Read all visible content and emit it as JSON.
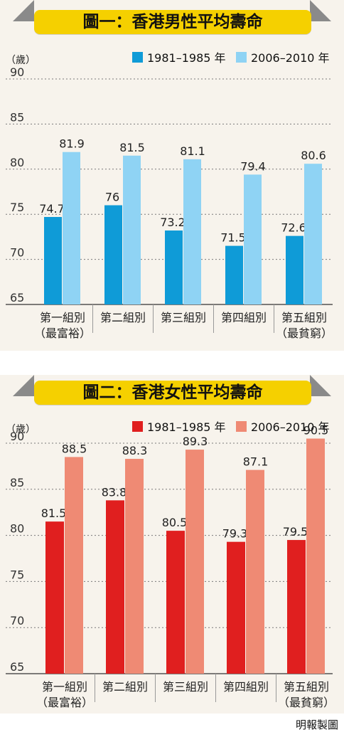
{
  "credit": "明報製圖",
  "charts": [
    {
      "title": "圖一：香港男性平均壽命",
      "unit": "（歲）",
      "legend": [
        "1981–1985 年",
        "2006–2010 年"
      ],
      "colors": [
        "#0f9bd7",
        "#8fd3f4"
      ]
    },
    {
      "title": "圖二：香港女性平均壽命",
      "unit": "（歲）",
      "legend": [
        "1981–1985 年",
        "2006–2010 年"
      ],
      "colors": [
        "#e01f1f",
        "#ef8a74"
      ]
    }
  ],
  "chart_data": [
    {
      "type": "bar",
      "title": "圖一：香港男性平均壽命",
      "ylabel": "（歲）",
      "ylim": [
        65,
        90
      ],
      "yticks": [
        65,
        70,
        75,
        80,
        85,
        90
      ],
      "categories": [
        [
          "第一組別",
          "（最富裕）"
        ],
        [
          "第二組別"
        ],
        [
          "第三組別"
        ],
        [
          "第四組別"
        ],
        [
          "第五組別",
          "（最貧窮）"
        ]
      ],
      "series": [
        {
          "name": "1981–1985 年",
          "color": "#0f9bd7",
          "values": [
            74.7,
            76,
            73.2,
            71.5,
            72.6
          ],
          "labels": [
            "74.7",
            "76",
            "73.2",
            "71.5",
            "72.6"
          ]
        },
        {
          "name": "2006–2010 年",
          "color": "#8fd3f4",
          "values": [
            81.9,
            81.5,
            81.1,
            79.4,
            80.6
          ],
          "labels": [
            "81.9",
            "81.5",
            "81.1",
            "79.4",
            "80.6"
          ]
        }
      ]
    },
    {
      "type": "bar",
      "title": "圖二：香港女性平均壽命",
      "ylabel": "（歲）",
      "ylim": [
        65,
        90
      ],
      "yticks": [
        65,
        70,
        75,
        80,
        85,
        90
      ],
      "categories": [
        [
          "第一組別",
          "（最富裕）"
        ],
        [
          "第二組別"
        ],
        [
          "第三組別"
        ],
        [
          "第四組別"
        ],
        [
          "第五組別",
          "（最貧窮）"
        ]
      ],
      "series": [
        {
          "name": "1981–1985 年",
          "color": "#e01f1f",
          "values": [
            81.5,
            83.8,
            80.5,
            79.3,
            79.5
          ],
          "labels": [
            "81.5",
            "83.8",
            "80.5",
            "79.3",
            "79.5"
          ]
        },
        {
          "name": "2006–2010 年",
          "color": "#ef8a74",
          "values": [
            88.5,
            88.3,
            89.3,
            87.1,
            90.5
          ],
          "labels": [
            "88.5",
            "88.3",
            "89.3",
            "87.1",
            "90.5"
          ]
        }
      ]
    }
  ]
}
